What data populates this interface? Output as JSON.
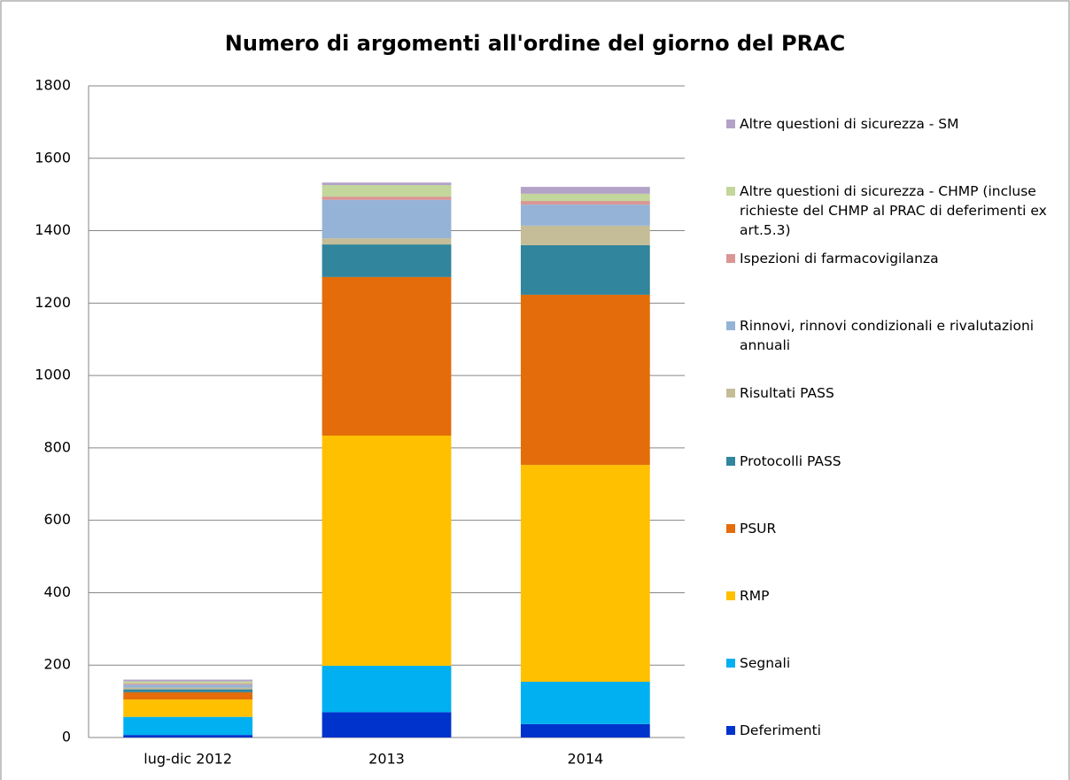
{
  "chart_data": {
    "type": "stacked_bar",
    "title": "Numero di argomenti all'ordine del giorno del PRAC",
    "categories": [
      "lug-dic 2012",
      "2013",
      "2014"
    ],
    "series": [
      {
        "name": "Deferimenti",
        "color": "#0033cc",
        "values": [
          7,
          70,
          37
        ]
      },
      {
        "name": "Segnali",
        "color": "#00b0f0",
        "values": [
          50,
          128,
          117
        ]
      },
      {
        "name": "RMP",
        "color": "#ffc000",
        "values": [
          48,
          636,
          599
        ]
      },
      {
        "name": "PSUR",
        "color": "#e46c0a",
        "values": [
          20,
          438,
          470
        ]
      },
      {
        "name": "Protocolli PASS",
        "color": "#31859c",
        "values": [
          8,
          90,
          137
        ]
      },
      {
        "name": "Risultati PASS",
        "color": "#c4bd97",
        "values": [
          5,
          17,
          54
        ]
      },
      {
        "name": "Rinnovi, rinnovi condizionali e rivalutazioni annuali",
        "color": "#95b3d7",
        "values": [
          8,
          106,
          58
        ]
      },
      {
        "name": "Ispezioni di farmacovigilanza",
        "color": "#d99694",
        "values": [
          3,
          9,
          10
        ]
      },
      {
        "name": "Altre questioni di sicurezza - CHMP (incluse richieste del CHMP al PRAC di deferimenti ex art.5.3)",
        "color": "#c3d69b",
        "values": [
          6,
          32,
          20
        ]
      },
      {
        "name": "Altre questioni di sicurezza - SM",
        "color": "#b3a2c7",
        "values": [
          5,
          7,
          19
        ]
      }
    ],
    "ylim": [
      0,
      1800
    ],
    "yticks": [
      0,
      200,
      400,
      600,
      800,
      1000,
      1200,
      1400,
      1600,
      1800
    ],
    "grid": true,
    "legend": "right"
  }
}
